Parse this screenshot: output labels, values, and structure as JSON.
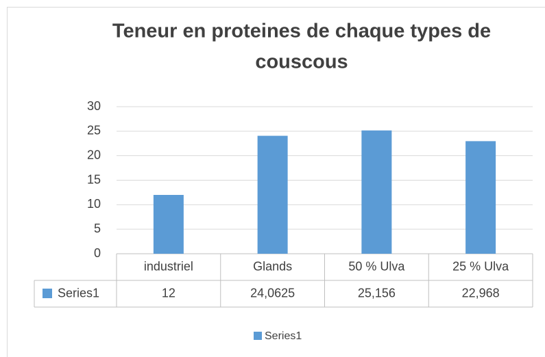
{
  "chart_data": {
    "type": "bar",
    "title": "Teneur en proteines de chaque types de couscous",
    "categories": [
      "industriel",
      "Glands",
      "50 % Ulva",
      "25 % Ulva"
    ],
    "series": [
      {
        "name": "Series1",
        "color": "#5b9bd5",
        "values": [
          12,
          24.0625,
          25.156,
          22.968
        ],
        "value_labels": [
          "12",
          "24,0625",
          "25,156",
          "22,968"
        ]
      }
    ],
    "ylim": [
      0,
      30
    ],
    "yticks": [
      0,
      5,
      10,
      15,
      20,
      25,
      30
    ],
    "grid": true,
    "legend": "bottom"
  }
}
